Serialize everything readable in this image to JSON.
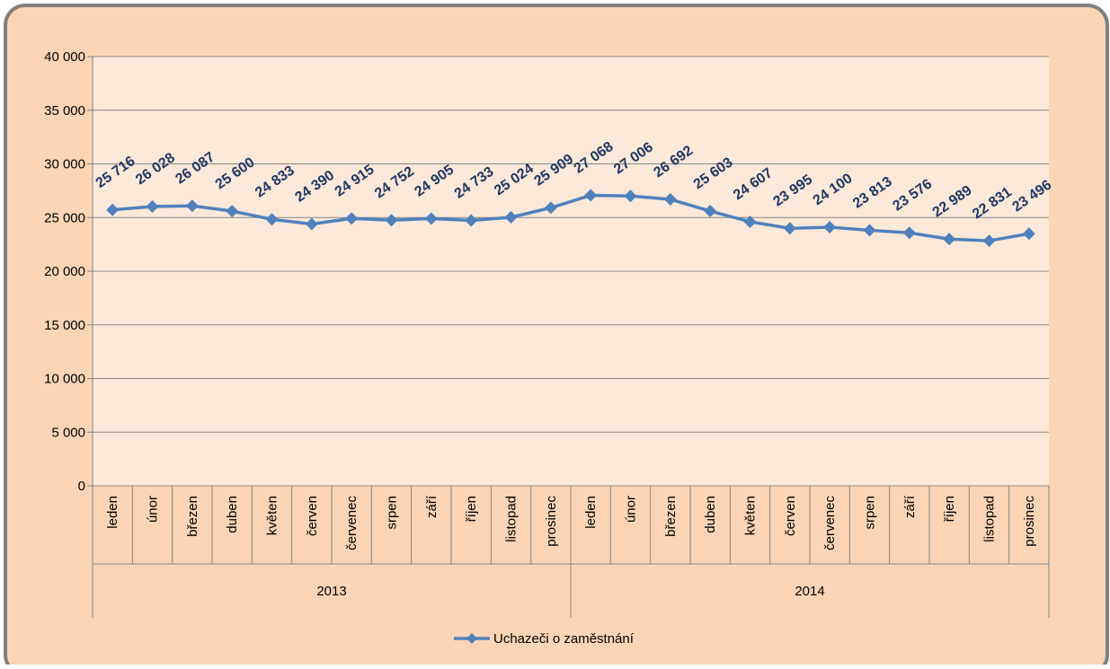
{
  "chart_data": {
    "type": "line",
    "categories": [
      "leden",
      "únor",
      "březen",
      "duben",
      "květen",
      "červen",
      "červenec",
      "srpen",
      "září",
      "říjen",
      "listopad",
      "prosinec",
      "leden",
      "únor",
      "březen",
      "duben",
      "květen",
      "červen",
      "červenec",
      "srpen",
      "září",
      "říjen",
      "listopad",
      "prosinec"
    ],
    "category_groups": [
      "2013",
      "2014"
    ],
    "series": [
      {
        "name": "Uchazeči o zaměstnání",
        "color": "#4f81bd",
        "values": [
          25716,
          26028,
          26087,
          25600,
          24833,
          24390,
          24915,
          24752,
          24905,
          24733,
          25024,
          25909,
          27068,
          27006,
          26692,
          25603,
          24607,
          23995,
          24100,
          23813,
          23576,
          22989,
          22831,
          23496
        ],
        "value_labels": [
          "25 716",
          "26 028",
          "26 087",
          "25 600",
          "24 833",
          "24 390",
          "24 915",
          "24 752",
          "24 905",
          "24 733",
          "25 024",
          "25 909",
          "27 068",
          "27 006",
          "26 692",
          "25 603",
          "24 607",
          "23 995",
          "24 100",
          "23 813",
          "23 576",
          "22 989",
          "22 831",
          "23 496"
        ]
      }
    ],
    "ylim": [
      0,
      40000
    ],
    "yticks": [
      0,
      {
        "value": 5000,
        "label": "5 000"
      },
      {
        "value": 10000,
        "label": "10 000"
      },
      {
        "value": 15000,
        "label": "15 000"
      },
      {
        "value": 20000,
        "label": "20 000"
      },
      {
        "value": 25000,
        "label": "25 000"
      },
      {
        "value": 30000,
        "label": "30 000"
      },
      {
        "value": 35000,
        "label": "35 000"
      },
      {
        "value": 40000,
        "label": "40 000"
      }
    ],
    "grid": true,
    "legend": "bottom"
  }
}
